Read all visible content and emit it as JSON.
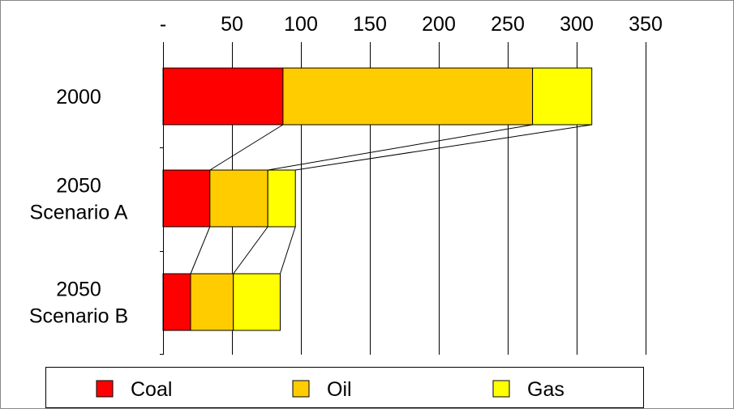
{
  "chart_data": {
    "type": "bar",
    "orientation": "horizontal",
    "stacked": true,
    "categories": [
      [
        "2000"
      ],
      [
        "2050",
        "Scenario A"
      ],
      [
        "2050",
        "Scenario B"
      ]
    ],
    "series": [
      {
        "name": "Coal",
        "color": "#ff0000",
        "values": [
          87,
          34,
          20
        ]
      },
      {
        "name": "Oil",
        "color": "#ffcc00",
        "values": [
          181,
          42,
          31
        ]
      },
      {
        "name": "Gas",
        "color": "#ffff00",
        "values": [
          43,
          20,
          34
        ]
      }
    ],
    "x_ticks": [
      "-",
      "50",
      "100",
      "150",
      "200",
      "250",
      "300",
      "350"
    ],
    "xlim": [
      0,
      350
    ],
    "x_tick_step": 50,
    "x_axis_position": "top",
    "grid": true,
    "connector_lines": true,
    "legend_position": "bottom",
    "title": "",
    "xlabel": "",
    "ylabel": ""
  }
}
